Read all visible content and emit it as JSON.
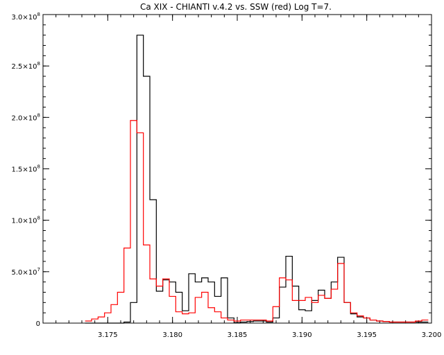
{
  "chart_data": {
    "type": "line",
    "title": "Ca XIX - CHIANTI v.4.2 vs. SSW (red) Log T=7.",
    "xlabel": "",
    "ylabel": "",
    "xlim": [
      3.17,
      3.2
    ],
    "ylim": [
      0,
      300000000.0
    ],
    "grid": false,
    "x_ticks": [
      {
        "value": 3.175,
        "label": "3.175"
      },
      {
        "value": 3.18,
        "label": "3.180"
      },
      {
        "value": 3.185,
        "label": "3.185"
      },
      {
        "value": 3.19,
        "label": "3.190"
      },
      {
        "value": 3.195,
        "label": "3.195"
      },
      {
        "value": 3.2,
        "label": "3.200"
      }
    ],
    "y_ticks": [
      {
        "value": 0,
        "mantissa": "0",
        "exp": ""
      },
      {
        "value": 50000000.0,
        "mantissa": "5.0×10",
        "exp": "7"
      },
      {
        "value": 100000000.0,
        "mantissa": "1.0×10",
        "exp": "8"
      },
      {
        "value": 150000000.0,
        "mantissa": "1.5×10",
        "exp": "8"
      },
      {
        "value": 200000000.0,
        "mantissa": "2.0×10",
        "exp": "8"
      },
      {
        "value": 250000000.0,
        "mantissa": "2.5×10",
        "exp": "8"
      },
      {
        "value": 300000000.0,
        "mantissa": "3.0×10",
        "exp": "8"
      }
    ],
    "series": [
      {
        "color": "#000000",
        "style": "histogram",
        "x": [
          3.1735,
          3.174,
          3.1745,
          3.175,
          3.1755,
          3.176,
          3.1765,
          3.177,
          3.1775,
          3.178,
          3.1785,
          3.179,
          3.1795,
          3.18,
          3.1805,
          3.181,
          3.1815,
          3.182,
          3.1825,
          3.183,
          3.1835,
          3.184,
          3.1845,
          3.185,
          3.1855,
          3.186,
          3.1865,
          3.187,
          3.1875,
          3.188,
          3.1885,
          3.189,
          3.1895,
          3.19,
          3.1905,
          3.191,
          3.1915,
          3.192,
          3.1925,
          3.193,
          3.1935,
          3.194,
          3.1945,
          3.195,
          3.1955,
          3.196,
          3.1965,
          3.197,
          3.1975,
          3.198,
          3.1985,
          3.199,
          3.1995
        ],
        "y": [
          0,
          0,
          0,
          0,
          0,
          0,
          1000000.0,
          20000000.0,
          280000000.0,
          240000000.0,
          120000000.0,
          31000000.0,
          42000000.0,
          40000000.0,
          30000000.0,
          12000000.0,
          48000000.0,
          40000000.0,
          44000000.0,
          40000000.0,
          26000000.0,
          44000000.0,
          5000000.0,
          500000.0,
          1000000.0,
          1500000.0,
          2000000.0,
          2000000.0,
          1000000.0,
          5000000.0,
          35000000.0,
          65000000.0,
          36000000.0,
          13000000.0,
          12000000.0,
          22000000.0,
          32000000.0,
          24000000.0,
          40000000.0,
          64000000.0,
          20000000.0,
          9000000.0,
          6000000.0,
          5000000.0,
          3000000.0,
          2000000.0,
          1500000.0,
          1000000.0,
          1000000.0,
          1000000.0,
          1000000.0,
          1000000.0,
          1000000.0
        ]
      },
      {
        "color": "#ff0000",
        "style": "histogram",
        "x": [
          3.1735,
          3.174,
          3.1745,
          3.175,
          3.1755,
          3.176,
          3.1765,
          3.177,
          3.1775,
          3.178,
          3.1785,
          3.179,
          3.1795,
          3.18,
          3.1805,
          3.181,
          3.1815,
          3.182,
          3.1825,
          3.183,
          3.1835,
          3.184,
          3.1845,
          3.185,
          3.1855,
          3.186,
          3.1865,
          3.187,
          3.1875,
          3.188,
          3.1885,
          3.189,
          3.1895,
          3.19,
          3.1905,
          3.191,
          3.1915,
          3.192,
          3.1925,
          3.193,
          3.1935,
          3.194,
          3.1945,
          3.195,
          3.1955,
          3.196,
          3.1965,
          3.197,
          3.1975,
          3.198,
          3.1985,
          3.199,
          3.1995
        ],
        "y": [
          2000000.0,
          4000000.0,
          6000000.0,
          10000000.0,
          18000000.0,
          30000000.0,
          73000000.0,
          197000000.0,
          185000000.0,
          76000000.0,
          43000000.0,
          36000000.0,
          43000000.0,
          26000000.0,
          11000000.0,
          9000000.0,
          10000000.0,
          25000000.0,
          30000000.0,
          15000000.0,
          11000000.0,
          5000000.0,
          3000000.0,
          2000000.0,
          3000000.0,
          3000000.0,
          3000000.0,
          3000000.0,
          2000000.0,
          16000000.0,
          44000000.0,
          42000000.0,
          22000000.0,
          22000000.0,
          25000000.0,
          20000000.0,
          27000000.0,
          24000000.0,
          33000000.0,
          58000000.0,
          20000000.0,
          10000000.0,
          7000000.0,
          5000000.0,
          3000000.0,
          2000000.0,
          1500000.0,
          1000000.0,
          1000000.0,
          1000000.0,
          1000000.0,
          2000000.0,
          3000000.0
        ]
      }
    ]
  }
}
